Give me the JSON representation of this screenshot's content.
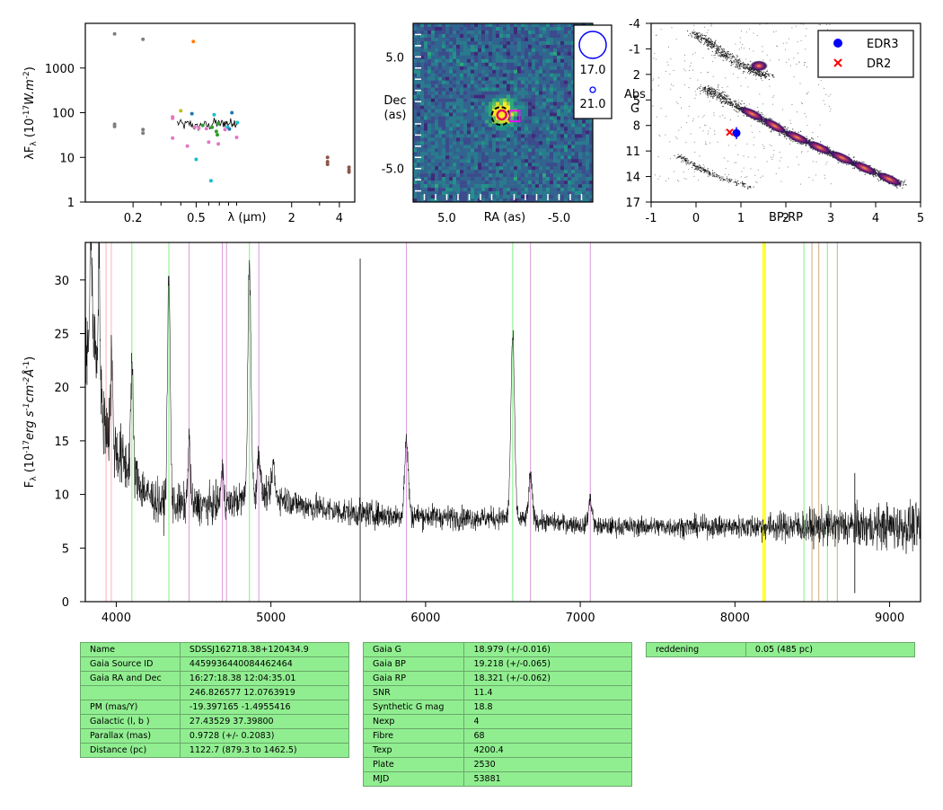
{
  "chart_data": [
    {
      "type": "scatter",
      "panel": "sed",
      "xlabel": "λ (μm)",
      "ylabel": "λF_λ (10^-17 W.m^-2)",
      "xscale": "log",
      "yscale": "log",
      "xlim": [
        0.1,
        5.0
      ],
      "ylim": [
        1,
        10000
      ],
      "x_ticks": [
        "0.2",
        "0.5",
        "2",
        "4"
      ],
      "x_tick_values": [
        0.2,
        0.5,
        2,
        4
      ],
      "y_ticks": [
        "1",
        "10",
        "100",
        "1000"
      ],
      "y_tick_values": [
        1,
        10,
        100,
        1000
      ],
      "points": [
        {
          "x": 0.153,
          "y": 5800,
          "c": "#7f7f7f"
        },
        {
          "x": 0.153,
          "y": 55,
          "c": "#7f7f7f"
        },
        {
          "x": 0.153,
          "y": 49,
          "c": "#7f7f7f"
        },
        {
          "x": 0.231,
          "y": 4400,
          "c": "#7f7f7f"
        },
        {
          "x": 0.231,
          "y": 42,
          "c": "#7f7f7f"
        },
        {
          "x": 0.231,
          "y": 35,
          "c": "#7f7f7f"
        },
        {
          "x": 0.48,
          "y": 3900,
          "c": "#ff7f0e"
        },
        {
          "x": 0.355,
          "y": 80,
          "c": "#e377c2"
        },
        {
          "x": 0.355,
          "y": 75,
          "c": "#e377c2"
        },
        {
          "x": 0.355,
          "y": 27,
          "c": "#e377c2"
        },
        {
          "x": 0.4,
          "y": 110,
          "c": "#bcbd22"
        },
        {
          "x": 0.44,
          "y": 18,
          "c": "#e377c2"
        },
        {
          "x": 0.47,
          "y": 95,
          "c": "#1f77b4"
        },
        {
          "x": 0.49,
          "y": 47,
          "c": "#e377c2"
        },
        {
          "x": 0.5,
          "y": 9,
          "c": "#17becf"
        },
        {
          "x": 0.52,
          "y": 45,
          "c": "#e377c2"
        },
        {
          "x": 0.55,
          "y": 52,
          "c": "#2ca02c"
        },
        {
          "x": 0.58,
          "y": 44,
          "c": "#e377c2"
        },
        {
          "x": 0.6,
          "y": 22,
          "c": "#e377c2"
        },
        {
          "x": 0.62,
          "y": 3,
          "c": "#17becf"
        },
        {
          "x": 0.63,
          "y": 47,
          "c": "#2ca02c"
        },
        {
          "x": 0.65,
          "y": 90,
          "c": "#17becf"
        },
        {
          "x": 0.67,
          "y": 38,
          "c": "#2ca02c"
        },
        {
          "x": 0.68,
          "y": 32,
          "c": "#2ca02c"
        },
        {
          "x": 0.69,
          "y": 57,
          "c": "#2ca02c"
        },
        {
          "x": 0.69,
          "y": 20,
          "c": "#e377c2"
        },
        {
          "x": 0.76,
          "y": 42,
          "c": "#e377c2"
        },
        {
          "x": 0.79,
          "y": 48,
          "c": "#17becf"
        },
        {
          "x": 0.81,
          "y": 43,
          "c": "#1f77b4"
        },
        {
          "x": 0.84,
          "y": 100,
          "c": "#1f77b4"
        },
        {
          "x": 0.9,
          "y": 28,
          "c": "#e377c2"
        },
        {
          "x": 0.91,
          "y": 60,
          "c": "#17becf"
        },
        {
          "x": 3.37,
          "y": 10,
          "c": "#8c564b"
        },
        {
          "x": 3.37,
          "y": 8,
          "c": "#8c564b"
        },
        {
          "x": 3.37,
          "y": 7,
          "c": "#8c564b"
        },
        {
          "x": 4.6,
          "y": 6,
          "c": "#8c564b"
        },
        {
          "x": 4.6,
          "y": 5.2,
          "c": "#8c564b"
        },
        {
          "x": 4.6,
          "y": 4.7,
          "c": "#8c564b"
        }
      ],
      "spectrum": [
        [
          0.38,
          60
        ],
        [
          0.42,
          52
        ],
        [
          0.46,
          58
        ],
        [
          0.5,
          46
        ],
        [
          0.55,
          55
        ],
        [
          0.6,
          50
        ],
        [
          0.65,
          62
        ],
        [
          0.7,
          55
        ],
        [
          0.75,
          60
        ],
        [
          0.8,
          58
        ],
        [
          0.85,
          64
        ],
        [
          0.92,
          60
        ]
      ]
    },
    {
      "type": "heatmap",
      "panel": "cutout",
      "xlabel": "RA (as)",
      "ylabel": "Dec\n(as)",
      "xlim": [
        8,
        -8
      ],
      "ylim": [
        -8,
        8
      ],
      "x_ticks": [
        "5.0",
        "-5.0"
      ],
      "x_tick_values": [
        5,
        -5
      ],
      "y_ticks": [
        "5.0",
        "-5.0"
      ],
      "y_tick_values": [
        5,
        -5
      ],
      "source": {
        "ra": 0,
        "dec": 0,
        "flux_peak": 1.0
      },
      "markers": [
        {
          "kind": "circle",
          "ra": 0.2,
          "dec": -0.3,
          "color": "#000000",
          "style": "dashed"
        },
        {
          "kind": "circle",
          "ra": 0.1,
          "dec": -0.2,
          "color": "#e01060"
        },
        {
          "kind": "square",
          "ra": -1.0,
          "dec": -0.3,
          "color": "#ff00ff"
        }
      ],
      "legend": [
        {
          "label": "17.0",
          "size": "large",
          "color": "#0000ff"
        },
        {
          "label": "21.0",
          "size": "small",
          "color": "#0000ff"
        }
      ]
    },
    {
      "type": "scatter",
      "panel": "hr-diagram",
      "xlabel": "BP-RP",
      "ylabel": "Abs\nG",
      "xlim": [
        -1,
        5
      ],
      "ylim": [
        17,
        -4
      ],
      "x_ticks": [
        "-1",
        "0",
        "1",
        "2",
        "3",
        "4",
        "5"
      ],
      "x_tick_values": [
        -1,
        0,
        1,
        2,
        3,
        4,
        5
      ],
      "y_ticks": [
        "-4",
        "-1",
        "2",
        "5",
        "8",
        "11",
        "14",
        "17"
      ],
      "y_tick_values": [
        -4,
        -1,
        2,
        5,
        8,
        11,
        14,
        17
      ],
      "background": "density of Gaia stars",
      "series": [
        {
          "name": "EDR3",
          "x": [
            0.9
          ],
          "y": [
            8.9
          ],
          "color": "#0000ff",
          "marker": "circle"
        },
        {
          "name": "DR2",
          "x": [
            0.75
          ],
          "y": [
            8.8
          ],
          "color": "#ff0000",
          "marker": "x"
        }
      ],
      "legend_position": "top-right"
    },
    {
      "type": "line",
      "panel": "spectrum",
      "xlabel": "",
      "ylabel": "F_λ (10^-17 erg s^-1 cm^-2 Å^-1)",
      "xlim": [
        3800,
        9200
      ],
      "ylim": [
        0,
        33.5
      ],
      "x_ticks": [
        "4000",
        "5000",
        "6000",
        "7000",
        "8000",
        "9000"
      ],
      "x_tick_values": [
        4000,
        5000,
        6000,
        7000,
        8000,
        9000
      ],
      "y_ticks": [
        "0",
        "5",
        "10",
        "15",
        "20",
        "25",
        "30"
      ],
      "y_tick_values": [
        0,
        5,
        10,
        15,
        20,
        25,
        30
      ],
      "continuum": [
        [
          3800,
          22
        ],
        [
          3850,
          26
        ],
        [
          3900,
          18
        ],
        [
          3950,
          16
        ],
        [
          4000,
          14
        ],
        [
          4100,
          12
        ],
        [
          4200,
          10
        ],
        [
          4300,
          9
        ],
        [
          4500,
          9
        ],
        [
          4700,
          9
        ],
        [
          4900,
          10
        ],
        [
          5000,
          10
        ],
        [
          5200,
          9
        ],
        [
          5400,
          8.5
        ],
        [
          5600,
          8.2
        ],
        [
          5800,
          8
        ],
        [
          6000,
          8
        ],
        [
          6200,
          7.8
        ],
        [
          6400,
          7.8
        ],
        [
          6500,
          7.8
        ],
        [
          6700,
          7.5
        ],
        [
          6900,
          7.3
        ],
        [
          7100,
          7
        ],
        [
          7500,
          7
        ],
        [
          8000,
          7
        ],
        [
          8500,
          7
        ],
        [
          9000,
          7
        ],
        [
          9200,
          7
        ]
      ],
      "noise": [
        [
          3800,
          4
        ],
        [
          4200,
          2
        ],
        [
          5000,
          1.3
        ],
        [
          6000,
          1.1
        ],
        [
          7000,
          0.8
        ],
        [
          8000,
          1.0
        ],
        [
          8500,
          1.6
        ],
        [
          9200,
          2.2
        ]
      ],
      "emission_lines": [
        {
          "center": 3835,
          "height": 10,
          "width": 6
        },
        {
          "center": 3889,
          "height": 13,
          "width": 6
        },
        {
          "center": 3970,
          "height": 8,
          "width": 6
        },
        {
          "center": 4101,
          "height": 10,
          "width": 8
        },
        {
          "center": 4340,
          "height": 21,
          "width": 9
        },
        {
          "center": 4471,
          "height": 6,
          "width": 8
        },
        {
          "center": 4686,
          "height": 3,
          "width": 10
        },
        {
          "center": 4861,
          "height": 22,
          "width": 10
        },
        {
          "center": 4922,
          "height": 4,
          "width": 9
        },
        {
          "center": 5015,
          "height": 3,
          "width": 9
        },
        {
          "center": 5876,
          "height": 7,
          "width": 12
        },
        {
          "center": 6563,
          "height": 17,
          "width": 12
        },
        {
          "center": 6678,
          "height": 4,
          "width": 12
        },
        {
          "center": 7065,
          "height": 2.5,
          "width": 12
        }
      ],
      "spikes": [
        {
          "x": 5577,
          "y_top": 32,
          "y_bottom": 0
        },
        {
          "x": 8775,
          "y_top": 12,
          "y_bottom": 0.8
        }
      ],
      "reference_lines": [
        {
          "x": 3934,
          "color": "#ffb6c1"
        },
        {
          "x": 3968,
          "color": "#ffb6c1"
        },
        {
          "x": 4101,
          "color": "#90ee90"
        },
        {
          "x": 4340,
          "color": "#90ee90"
        },
        {
          "x": 4471,
          "color": "#dda0dd"
        },
        {
          "x": 4686,
          "color": "#dda0dd"
        },
        {
          "x": 4713,
          "color": "#dda0dd"
        },
        {
          "x": 4861,
          "color": "#90ee90"
        },
        {
          "x": 4922,
          "color": "#dda0dd"
        },
        {
          "x": 5876,
          "color": "#dda0dd"
        },
        {
          "x": 6563,
          "color": "#90ee90"
        },
        {
          "x": 6678,
          "color": "#dda0dd"
        },
        {
          "x": 7065,
          "color": "#dda0dd"
        },
        {
          "x": 8183,
          "color": "#ffff00"
        },
        {
          "x": 8195,
          "color": "#ffff00"
        },
        {
          "x": 8446,
          "color": "#90ee90"
        },
        {
          "x": 8498,
          "color": "#d2b48c"
        },
        {
          "x": 8542,
          "color": "#d2b48c"
        },
        {
          "x": 8598,
          "color": "#90ee90"
        },
        {
          "x": 8662,
          "color": "#d2b48c"
        }
      ]
    }
  ],
  "tables": {
    "astrometry": [
      [
        "Name",
        "SDSSJ162718.38+120434.9"
      ],
      [
        "Gaia Source ID",
        "4459936440084462464"
      ],
      [
        "Gaia RA and Dec",
        "16:27:18.38    12:04:35.01"
      ],
      [
        "",
        "246.826577    12.0763919"
      ],
      [
        "PM (mas/Y)",
        "-19.397165    -1.4955416"
      ],
      [
        "Galactic (l, b )",
        "27.43529    37.39800"
      ],
      [
        "Parallax (mas)",
        "0.9728 (+/- 0.2083)"
      ],
      [
        "Distance (pc)",
        "1122.7 (879.3 to 1462.5)"
      ]
    ],
    "photometry": [
      [
        "Gaia G",
        "18.979 (+/-0.016)"
      ],
      [
        "Gaia BP",
        "19.218 (+/-0.065)"
      ],
      [
        "Gaia RP",
        "18.321 (+/-0.062)"
      ],
      [
        "SNR",
        "11.4"
      ],
      [
        "Synthetic G mag",
        "18.8"
      ],
      [
        "Nexp",
        "4"
      ],
      [
        "Fibre",
        "68"
      ],
      [
        "Texp",
        "4200.4"
      ],
      [
        "Plate",
        "2530"
      ],
      [
        "MJD",
        "53881"
      ]
    ],
    "extinction": [
      [
        "reddening",
        "0.05 (485 pc)"
      ]
    ]
  }
}
